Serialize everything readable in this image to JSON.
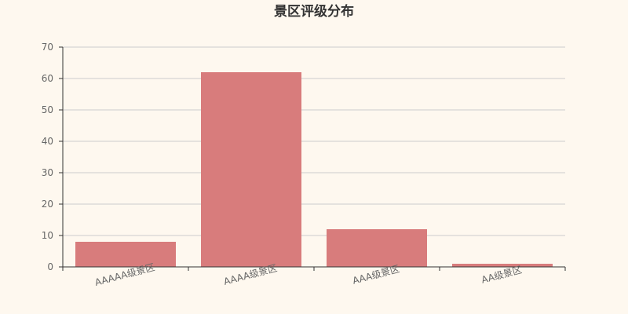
{
  "chart_data": {
    "type": "bar",
    "title": "景区评级分布",
    "categories": [
      "AAAAA级景区",
      "AAAA级景区",
      "AAA级景区",
      "AA级景区"
    ],
    "values": [
      8,
      62,
      12,
      1
    ],
    "ylim": [
      0,
      70
    ],
    "yticks": [
      0,
      10,
      20,
      30,
      40,
      50,
      60,
      70
    ],
    "grid": true,
    "colors": {
      "bar": "#d87c7c",
      "background": "#fef8ef",
      "grid": "#cccccc",
      "axis": "#333333"
    }
  }
}
